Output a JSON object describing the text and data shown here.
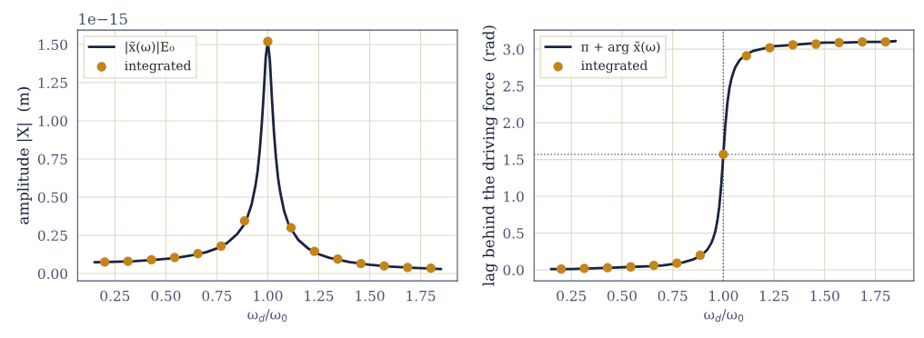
{
  "chart_data": [
    {
      "type": "line",
      "xlabel": "ω$_{d}$/ω$_{0}$",
      "ylabel": "amplitude |X|  (m)",
      "annotations": [
        "1e−15"
      ],
      "xlim": [
        0.067,
        1.93
      ],
      "ylim": [
        -0.048,
        1.595
      ],
      "xticks": [
        {
          "value": 0.25,
          "label": "0.25"
        },
        {
          "value": 0.5,
          "label": "0.50"
        },
        {
          "value": 0.75,
          "label": "0.75"
        },
        {
          "value": 1.0,
          "label": "1.00"
        },
        {
          "value": 1.25,
          "label": "1.25"
        },
        {
          "value": 1.5,
          "label": "1.50"
        },
        {
          "value": 1.75,
          "label": "1.75"
        }
      ],
      "yticks": [
        {
          "value": 0.0,
          "label": "0.00"
        },
        {
          "value": 0.25,
          "label": "0.25"
        },
        {
          "value": 0.5,
          "label": "0.50"
        },
        {
          "value": 0.75,
          "label": "0.75"
        },
        {
          "value": 1.0,
          "label": "1.00"
        },
        {
          "value": 1.25,
          "label": "1.25"
        },
        {
          "value": 1.5,
          "label": "1.50"
        }
      ],
      "grid": true,
      "legend": "top left",
      "series": [
        {
          "name": "|x̃(ω)|E₀",
          "color": "#1b2340",
          "marker": "none",
          "line_style": "solid",
          "x": [
            0.15,
            0.25,
            0.35,
            0.45,
            0.55,
            0.65,
            0.7,
            0.75,
            0.8,
            0.85,
            0.88,
            0.9,
            0.92,
            0.94,
            0.95,
            0.96,
            0.97,
            0.98,
            0.99,
            1.0,
            1.01,
            1.02,
            1.03,
            1.04,
            1.05,
            1.06,
            1.08,
            1.1,
            1.12,
            1.15,
            1.2,
            1.25,
            1.3,
            1.4,
            1.5,
            1.6,
            1.7,
            1.8,
            1.85
          ],
          "values": [
            0.074,
            0.077,
            0.082,
            0.09,
            0.103,
            0.125,
            0.141,
            0.165,
            0.2,
            0.259,
            0.314,
            0.37,
            0.45,
            0.58,
            0.67,
            0.8,
            0.97,
            1.18,
            1.42,
            1.52,
            1.4,
            1.15,
            0.93,
            0.76,
            0.63,
            0.54,
            0.41,
            0.33,
            0.28,
            0.22,
            0.162,
            0.127,
            0.104,
            0.075,
            0.058,
            0.046,
            0.038,
            0.032,
            0.03
          ]
        },
        {
          "name": "integrated",
          "type": "scatter",
          "color": "#c3841a",
          "marker": "circle",
          "x": [
            0.2,
            0.314,
            0.429,
            0.543,
            0.657,
            0.771,
            0.886,
            1.0,
            1.114,
            1.229,
            1.343,
            1.457,
            1.571,
            1.686,
            1.8
          ],
          "values": [
            0.075,
            0.08,
            0.09,
            0.105,
            0.13,
            0.18,
            0.345,
            1.52,
            0.3,
            0.145,
            0.095,
            0.065,
            0.05,
            0.04,
            0.035
          ]
        }
      ]
    },
    {
      "type": "line",
      "xlabel": "ω$_{d}$/ω$_{0}$",
      "ylabel": "lag behind the driving force  (rad)",
      "xlim": [
        0.066,
        1.94
      ],
      "ylim": [
        -0.15,
        3.26
      ],
      "xticks": [
        {
          "value": 0.25,
          "label": "0.25"
        },
        {
          "value": 0.5,
          "label": "0.50"
        },
        {
          "value": 0.75,
          "label": "0.75"
        },
        {
          "value": 1.0,
          "label": "1.00"
        },
        {
          "value": 1.25,
          "label": "1.25"
        },
        {
          "value": 1.5,
          "label": "1.50"
        },
        {
          "value": 1.75,
          "label": "1.75"
        }
      ],
      "yticks": [
        {
          "value": 0.0,
          "label": "0.0"
        },
        0.5,
        {
          "value": 1.0,
          "label": "1.0"
        },
        1.5,
        {
          "value": 2.0,
          "label": "2.0"
        },
        2.5,
        {
          "value": 3.0,
          "label": "3.0"
        }
      ],
      "grid": true,
      "legend": "top left",
      "ref_lines": [
        {
          "axis": "x",
          "value": 1.0,
          "color": "#4a5270",
          "line_style": "dotted"
        },
        {
          "axis": "y",
          "value": 1.57,
          "color": "#4a5270",
          "line_style": "dotted"
        }
      ],
      "series": [
        {
          "name": "π + arg x̃(ω)",
          "color": "#1b2340",
          "marker": "none",
          "line_style": "solid",
          "x": [
            0.15,
            0.25,
            0.35,
            0.45,
            0.55,
            0.65,
            0.7,
            0.75,
            0.8,
            0.85,
            0.88,
            0.9,
            0.92,
            0.94,
            0.95,
            0.96,
            0.97,
            0.98,
            0.99,
            1.0,
            1.01,
            1.02,
            1.03,
            1.04,
            1.05,
            1.06,
            1.08,
            1.1,
            1.12,
            1.15,
            1.2,
            1.25,
            1.3,
            1.4,
            1.5,
            1.6,
            1.7,
            1.8,
            1.85
          ],
          "values": [
            0.01,
            0.01,
            0.02,
            0.03,
            0.04,
            0.05,
            0.06,
            0.08,
            0.1,
            0.14,
            0.18,
            0.22,
            0.27,
            0.36,
            0.43,
            0.52,
            0.66,
            0.86,
            1.17,
            1.57,
            1.97,
            2.27,
            2.47,
            2.6,
            2.69,
            2.76,
            2.85,
            2.9,
            2.94,
            2.98,
            3.01,
            3.04,
            3.05,
            3.07,
            3.09,
            3.09,
            3.1,
            3.1,
            3.11
          ]
        },
        {
          "name": "integrated",
          "type": "scatter",
          "color": "#c3841a",
          "marker": "circle",
          "x": [
            0.2,
            0.314,
            0.429,
            0.543,
            0.657,
            0.771,
            0.886,
            1.0,
            1.114,
            1.229,
            1.343,
            1.457,
            1.571,
            1.686,
            1.8
          ],
          "values": [
            0.01,
            0.02,
            0.03,
            0.04,
            0.06,
            0.09,
            0.2,
            1.57,
            2.91,
            3.02,
            3.06,
            3.07,
            3.09,
            3.1,
            3.1
          ]
        }
      ]
    }
  ]
}
